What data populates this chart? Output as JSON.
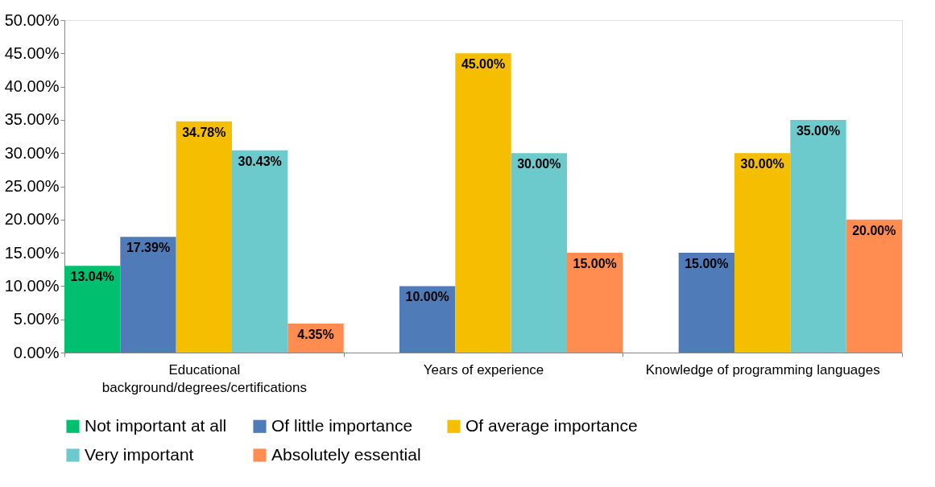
{
  "chart_data": {
    "type": "bar",
    "categories": [
      "Educational background/degrees/certifications",
      "Years of experience",
      "Knowledge of programming languages"
    ],
    "series": [
      {
        "name": "Not important at all",
        "color": "#00bf6f",
        "values": [
          13.04,
          null,
          null
        ],
        "value_labels": [
          "13.04%",
          null,
          null
        ]
      },
      {
        "name": "Of little importance",
        "color": "#4f7bb8",
        "values": [
          17.39,
          10.0,
          15.0
        ],
        "value_labels": [
          "17.39%",
          "10.00%",
          "15.00%"
        ]
      },
      {
        "name": "Of average importance",
        "color": "#f6be00",
        "values": [
          34.78,
          45.0,
          30.0
        ],
        "value_labels": [
          "34.78%",
          "45.00%",
          "30.00%"
        ]
      },
      {
        "name": "Very important",
        "color": "#6cc9cc",
        "values": [
          30.43,
          30.0,
          35.0
        ],
        "value_labels": [
          "30.43%",
          "30.00%",
          "35.00%"
        ]
      },
      {
        "name": "Absolutely essential",
        "color": "#ff8c50",
        "values": [
          4.35,
          15.0,
          20.0
        ],
        "value_labels": [
          "4.35%",
          "15.00%",
          "20.00%"
        ]
      }
    ],
    "ylim": [
      0,
      50
    ],
    "yticks": [
      {
        "value": 0,
        "label": "0.00%"
      },
      {
        "value": 5,
        "label": "5.00%"
      },
      {
        "value": 10,
        "label": "10.00%"
      },
      {
        "value": 15,
        "label": "15.00%"
      },
      {
        "value": 20,
        "label": "20.00%"
      },
      {
        "value": 25,
        "label": "25.00%"
      },
      {
        "value": 30,
        "label": "30.00%"
      },
      {
        "value": 35,
        "label": "35.00%"
      },
      {
        "value": 40,
        "label": "40.00%"
      },
      {
        "value": 45,
        "label": "45.00%"
      },
      {
        "value": 50,
        "label": "50.00%"
      }
    ],
    "grid": false,
    "legend": "bottom"
  }
}
